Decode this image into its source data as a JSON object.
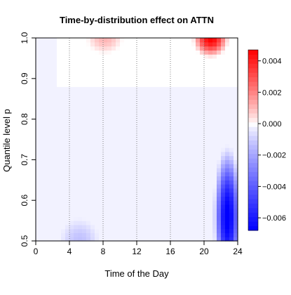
{
  "chart_data": {
    "type": "heatmap",
    "title": "Time-by-distribution effect on ATTN",
    "xlabel": "Time of the Day",
    "ylabel": "Quantile level p",
    "xlim": [
      0,
      24
    ],
    "ylim": [
      0.5,
      1.0
    ],
    "x_ticks": [
      0,
      4,
      8,
      12,
      16,
      20,
      24
    ],
    "y_ticks": [
      0.5,
      0.6,
      0.7,
      0.8,
      0.9,
      1.0
    ],
    "vertical_reference_lines_x": [
      4,
      8,
      12,
      16,
      20
    ],
    "grid": false,
    "colorbar": {
      "placement": "right",
      "ticks": [
        0.004,
        0.002,
        0.0,
        -0.002,
        -0.004,
        -0.006
      ],
      "tick_labels": [
        "0.004",
        "0.002",
        "0.000",
        "−0.002",
        "−0.004",
        "−0.006"
      ],
      "range": [
        -0.0068,
        0.0047
      ]
    },
    "colors": {
      "positive_max": "#ff0000",
      "zero": "#ffffff",
      "negative_max": "#0000ff",
      "background_negative": "#f0f7fe"
    },
    "features": [
      {
        "kind": "positive_peak",
        "x_center": 8.2,
        "p_center": 1.0,
        "x_range": [
          6.0,
          10.5
        ],
        "p_range": [
          0.96,
          1.0
        ],
        "value": 0.0011
      },
      {
        "kind": "positive_peak",
        "x_center": 20.8,
        "p_center": 1.0,
        "x_range": [
          18.5,
          23.0
        ],
        "p_range": [
          0.95,
          1.0
        ],
        "value": 0.0047
      },
      {
        "kind": "negative_peak",
        "x_center": 22.8,
        "p_center": 0.56,
        "x_range": [
          20.5,
          24.0
        ],
        "p_range": [
          0.5,
          0.74
        ],
        "value": -0.0068
      },
      {
        "kind": "negative_peak",
        "x_center": 5.2,
        "p_center": 0.5,
        "x_range": [
          3.0,
          8.0
        ],
        "p_range": [
          0.5,
          0.56
        ],
        "value": -0.0011
      },
      {
        "kind": "zero_region",
        "x_range": [
          2.7,
          24.0
        ],
        "p_range": [
          0.88,
          1.0
        ],
        "value": 0.0
      },
      {
        "kind": "faint_negative_background",
        "x_range": [
          0.0,
          24.0
        ],
        "p_range": [
          0.5,
          1.0
        ],
        "value": -0.0002
      }
    ]
  }
}
